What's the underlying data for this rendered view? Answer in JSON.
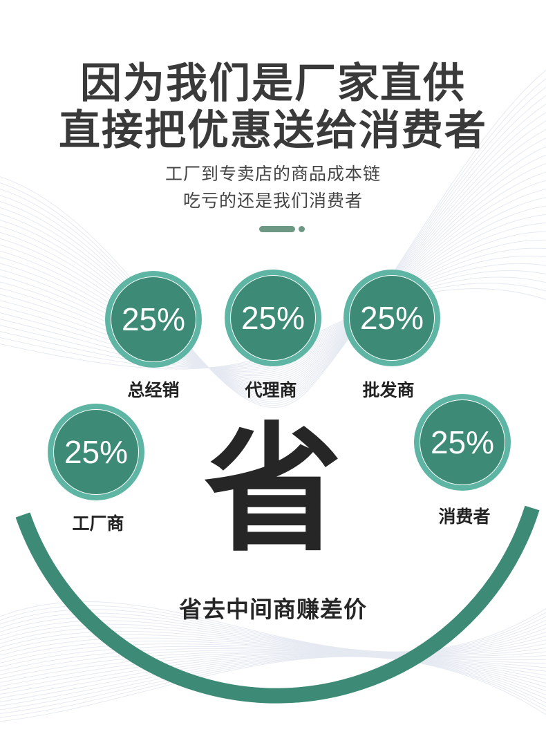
{
  "headline": {
    "line1": "因为我们是厂家直供",
    "line2": "直接把优惠送给消费者"
  },
  "subtitle": {
    "line1": "工厂到专卖店的商品成本链",
    "line2": "吃亏的还是我们消费者"
  },
  "nodes": [
    {
      "value": "25%",
      "label": "总经销"
    },
    {
      "value": "25%",
      "label": "代理商"
    },
    {
      "value": "25%",
      "label": "批发商"
    },
    {
      "value": "25%",
      "label": "工厂商"
    },
    {
      "value": "25%",
      "label": "消费者"
    }
  ],
  "center_char": "省",
  "slogan": "省去中间商赚差价",
  "colors": {
    "ring": "#5fb5a3",
    "fill": "#3d8b76",
    "arc": "#3d8b76",
    "accent": "#6d9883",
    "title": "#3a3a3a"
  }
}
